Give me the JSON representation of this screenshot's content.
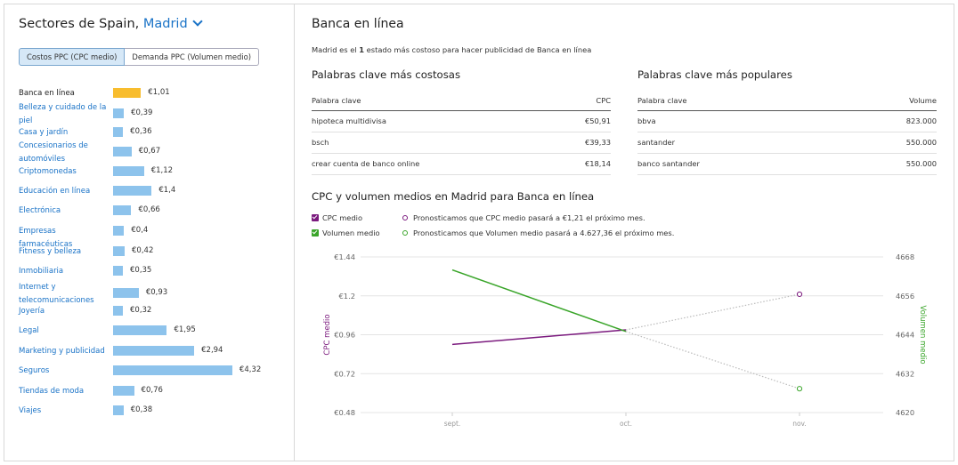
{
  "left": {
    "title_prefix": "Sectores de Spain, ",
    "region": "Madrid",
    "toggle_cpc": "Costos PPC (CPC medio)",
    "toggle_demand": "Demanda PPC (Volumen medio)",
    "sectors": [
      {
        "name": "Banca en línea",
        "value": 1.01,
        "label": "€1,01",
        "highlight": true
      },
      {
        "name": "Belleza y cuidado de la piel",
        "value": 0.39,
        "label": "€0,39"
      },
      {
        "name": "Casa y jardín",
        "value": 0.36,
        "label": "€0,36"
      },
      {
        "name": "Concesionarios de automóviles",
        "value": 0.67,
        "label": "€0,67"
      },
      {
        "name": "Criptomonedas",
        "value": 1.12,
        "label": "€1,12"
      },
      {
        "name": "Educación en línea",
        "value": 1.4,
        "label": "€1,4"
      },
      {
        "name": "Electrónica",
        "value": 0.66,
        "label": "€0,66"
      },
      {
        "name": "Empresas farmacéuticas",
        "value": 0.4,
        "label": "€0,4"
      },
      {
        "name": "Fitness y belleza",
        "value": 0.42,
        "label": "€0,42"
      },
      {
        "name": "Inmobiliaria",
        "value": 0.35,
        "label": "€0,35"
      },
      {
        "name": "Internet y telecomunicaciones",
        "value": 0.93,
        "label": "€0,93"
      },
      {
        "name": "Joyería",
        "value": 0.32,
        "label": "€0,32"
      },
      {
        "name": "Legal",
        "value": 1.95,
        "label": "€1,95"
      },
      {
        "name": "Marketing y publicidad",
        "value": 2.94,
        "label": "€2,94"
      },
      {
        "name": "Seguros",
        "value": 4.32,
        "label": "€4,32"
      },
      {
        "name": "Tiendas de moda",
        "value": 0.76,
        "label": "€0,76"
      },
      {
        "name": "Viajes",
        "value": 0.38,
        "label": "€0,38"
      }
    ]
  },
  "right": {
    "title": "Banca en línea",
    "subtitle_pre": "Madrid es el ",
    "subtitle_bold": "1",
    "subtitle_post": " estado más costoso para hacer publicidad de Banca en línea",
    "costly": {
      "title": "Palabras clave más costosas",
      "col_keyword": "Palabra clave",
      "col_value": "CPC",
      "rows": [
        {
          "keyword": "hipoteca multidivisa",
          "value": "€50,91"
        },
        {
          "keyword": "bsch",
          "value": "€39,33"
        },
        {
          "keyword": "crear cuenta de banco online",
          "value": "€18,14"
        }
      ]
    },
    "popular": {
      "title": "Palabras clave más populares",
      "col_keyword": "Palabra clave",
      "col_value": "Volume",
      "rows": [
        {
          "keyword": "bbva",
          "value": "823.000"
        },
        {
          "keyword": "santander",
          "value": "550.000"
        },
        {
          "keyword": "banco santander",
          "value": "550.000"
        }
      ]
    },
    "chart_title": "CPC y volumen medios en Madrid para Banca en línea",
    "legend": {
      "cpc": "CPC medio",
      "volume": "Volumen medio",
      "cpc_forecast": "Pronosticamos que CPC medio pasará a €1,21 el próximo mes.",
      "volume_forecast": "Pronosticamos que Volumen medio pasará a 4.627,36 el próximo mes."
    }
  },
  "colors": {
    "cpc": "#7b1a7e",
    "volume": "#3aa52a",
    "bar": "#8dc3ec",
    "bar_highlight": "#f8bd2e",
    "link": "#1a73c7"
  },
  "chart_data": {
    "type": "line",
    "categories": [
      "sept.",
      "oct.",
      "nov."
    ],
    "series": [
      {
        "name": "CPC medio",
        "axis": "left",
        "values": [
          0.9,
          0.99,
          null
        ],
        "forecast": [
          null,
          0.99,
          1.21
        ]
      },
      {
        "name": "Volumen medio",
        "axis": "right",
        "values": [
          4664,
          4645,
          null
        ],
        "forecast": [
          null,
          4645,
          4627.36
        ]
      }
    ],
    "ylabel": "CPC medio",
    "y2label": "Volumen medio",
    "ylim": [
      0.48,
      1.44
    ],
    "y2lim": [
      4620,
      4668
    ],
    "yticks": [
      "€0.48",
      "€0.72",
      "€0.96",
      "€1.2",
      "€1.44"
    ],
    "y2ticks": [
      "4620",
      "4632",
      "4644",
      "4656",
      "4668"
    ],
    "grid": true
  }
}
